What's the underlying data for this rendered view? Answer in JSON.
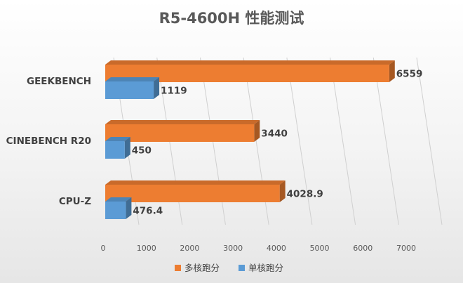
{
  "chart_data": {
    "type": "bar",
    "orientation": "horizontal",
    "style": "3d-clustered-bar",
    "title": "R5-4600H 性能测试",
    "xlabel": "",
    "ylabel": "",
    "categories": [
      "GEEKBENCH",
      "CINEBENCH R20",
      "CPU-Z"
    ],
    "series": [
      {
        "name": "多核跑分",
        "color": "#ED7D31",
        "values": [
          6559,
          3440,
          4028.9
        ]
      },
      {
        "name": "单核跑分",
        "color": "#5B9BD5",
        "values": [
          1119,
          450,
          476.4
        ]
      }
    ],
    "xlim": [
      0,
      7000
    ],
    "ticks": [
      0,
      1000,
      2000,
      3000,
      4000,
      5000,
      6000,
      7000
    ],
    "grid": true,
    "legend_position": "bottom"
  }
}
